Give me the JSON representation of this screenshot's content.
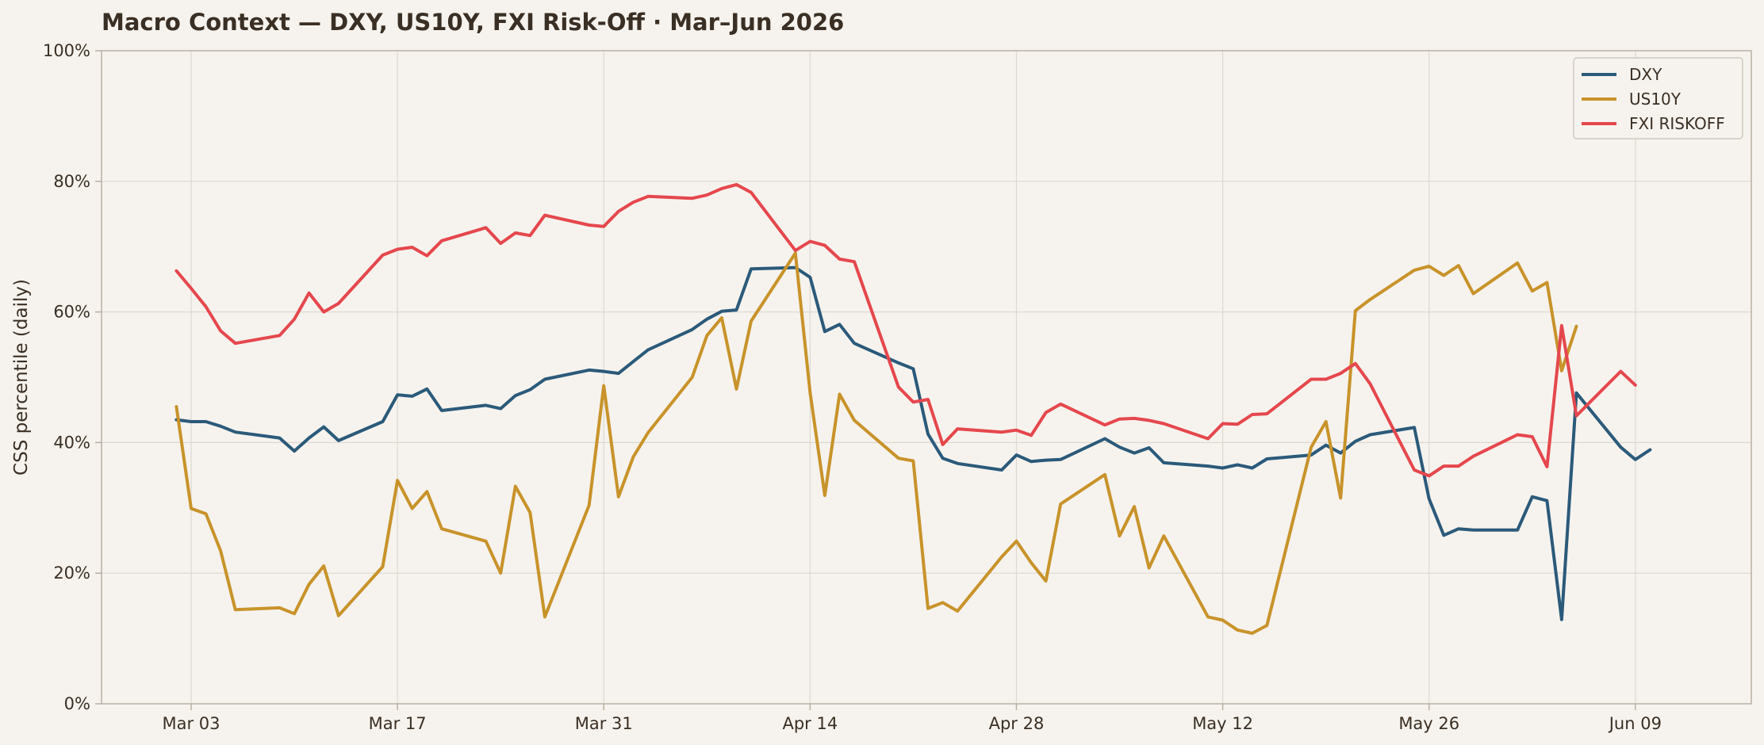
{
  "chart_data": {
    "type": "line",
    "title": "Macro Context — DXY, US10Y, FXI Risk-Off · Mar–Jun 2026",
    "xlabel": "",
    "ylabel": "CSS percentile (daily)",
    "ylim": [
      0,
      100
    ],
    "y_ticks": [
      "0%",
      "20%",
      "40%",
      "60%",
      "80%",
      "100%"
    ],
    "x_ticks": [
      "Mar 03",
      "Mar 17",
      "Mar 31",
      "Apr 14",
      "Apr 28",
      "May 12",
      "May 26",
      "Jun 09"
    ],
    "grid": true,
    "legend_position": "top-right",
    "x": [
      "2026-03-02",
      "2026-03-03",
      "2026-03-04",
      "2026-03-05",
      "2026-03-06",
      "2026-03-09",
      "2026-03-10",
      "2026-03-11",
      "2026-03-12",
      "2026-03-13",
      "2026-03-16",
      "2026-03-17",
      "2026-03-18",
      "2026-03-19",
      "2026-03-20",
      "2026-03-23",
      "2026-03-24",
      "2026-03-25",
      "2026-03-26",
      "2026-03-27",
      "2026-03-30",
      "2026-03-31",
      "2026-04-01",
      "2026-04-02",
      "2026-04-03",
      "2026-04-06",
      "2026-04-07",
      "2026-04-08",
      "2026-04-09",
      "2026-04-10",
      "2026-04-13",
      "2026-04-14",
      "2026-04-15",
      "2026-04-16",
      "2026-04-17",
      "2026-04-20",
      "2026-04-21",
      "2026-04-22",
      "2026-04-23",
      "2026-04-24",
      "2026-04-27",
      "2026-04-28",
      "2026-04-29",
      "2026-04-30",
      "2026-05-01",
      "2026-05-04",
      "2026-05-05",
      "2026-05-06",
      "2026-05-07",
      "2026-05-08",
      "2026-05-11",
      "2026-05-12",
      "2026-05-13",
      "2026-05-14",
      "2026-05-15",
      "2026-05-18",
      "2026-05-19",
      "2026-05-20",
      "2026-05-21",
      "2026-05-22",
      "2026-05-25",
      "2026-05-26",
      "2026-05-27",
      "2026-05-28",
      "2026-05-29",
      "2026-06-01",
      "2026-06-02",
      "2026-06-03",
      "2026-06-04",
      "2026-06-05",
      "2026-06-08",
      "2026-06-09",
      "2026-06-10",
      "2026-06-11",
      "2026-06-12"
    ],
    "series": [
      {
        "name": "DXY",
        "color": "#2b5a7a",
        "values": [
          43.5,
          43.2,
          43.2,
          42.5,
          41.6,
          40.7,
          38.7,
          40.7,
          42.4,
          40.3,
          43.2,
          47.3,
          47.1,
          48.2,
          44.9,
          45.7,
          45.2,
          47.2,
          48.1,
          49.7,
          51.1,
          50.9,
          50.6,
          52.4,
          54.2,
          57.3,
          58.9,
          60.1,
          60.3,
          66.6,
          66.8,
          65.3,
          57.0,
          58.1,
          55.2,
          52.2,
          51.3,
          41.3,
          37.6,
          36.8,
          35.8,
          38.1,
          37.1,
          37.3,
          37.4,
          40.6,
          39.3,
          38.4,
          39.2,
          36.9,
          36.4,
          36.1,
          36.6,
          36.1,
          37.5,
          38.1,
          39.6,
          38.4,
          40.2,
          41.2,
          42.3,
          31.4,
          25.8,
          26.8,
          26.6,
          26.6,
          31.7,
          31.1,
          12.9,
          47.6,
          39.3,
          37.4,
          38.9,
          null,
          null
        ]
      },
      {
        "name": "US10Y",
        "color": "#c8932a",
        "values": [
          45.5,
          29.9,
          29.1,
          23.4,
          14.4,
          14.7,
          13.8,
          18.3,
          21.1,
          13.5,
          21.0,
          34.2,
          29.9,
          32.5,
          26.8,
          24.9,
          20.0,
          33.3,
          29.3,
          13.3,
          30.4,
          48.7,
          31.7,
          37.8,
          41.5,
          50.0,
          56.4,
          59.1,
          48.2,
          58.6,
          69.0,
          47.6,
          31.9,
          47.4,
          43.4,
          37.6,
          37.2,
          14.6,
          15.5,
          14.2,
          22.5,
          24.9,
          21.6,
          18.8,
          30.6,
          35.1,
          25.7,
          30.2,
          20.8,
          25.7,
          13.3,
          12.8,
          11.3,
          10.8,
          12.0,
          39.3,
          43.2,
          31.5,
          60.2,
          61.9,
          66.4,
          67.0,
          65.6,
          67.1,
          62.8,
          67.5,
          63.2,
          64.5,
          51.0,
          57.8,
          null,
          null,
          null,
          null,
          null
        ]
      },
      {
        "name": "FXI RISKOFF",
        "color": "#e5474d",
        "values": [
          66.3,
          63.6,
          60.8,
          57.1,
          55.2,
          56.4,
          58.9,
          62.9,
          60.0,
          61.3,
          68.7,
          69.6,
          69.9,
          68.6,
          70.9,
          72.9,
          70.5,
          72.1,
          71.7,
          74.8,
          73.3,
          73.1,
          75.4,
          76.8,
          77.7,
          77.4,
          77.9,
          78.9,
          79.5,
          78.3,
          69.4,
          70.8,
          70.2,
          68.1,
          67.7,
          48.5,
          46.2,
          46.6,
          39.7,
          42.1,
          41.6,
          41.9,
          41.1,
          44.6,
          45.9,
          42.7,
          43.6,
          43.7,
          43.4,
          42.9,
          40.6,
          42.9,
          42.8,
          44.3,
          44.4,
          49.7,
          49.7,
          50.6,
          52.1,
          49.0,
          35.8,
          34.9,
          36.4,
          36.4,
          37.9,
          41.2,
          40.9,
          36.3,
          57.9,
          44.1,
          50.9,
          48.8,
          null,
          null,
          null
        ]
      }
    ]
  }
}
